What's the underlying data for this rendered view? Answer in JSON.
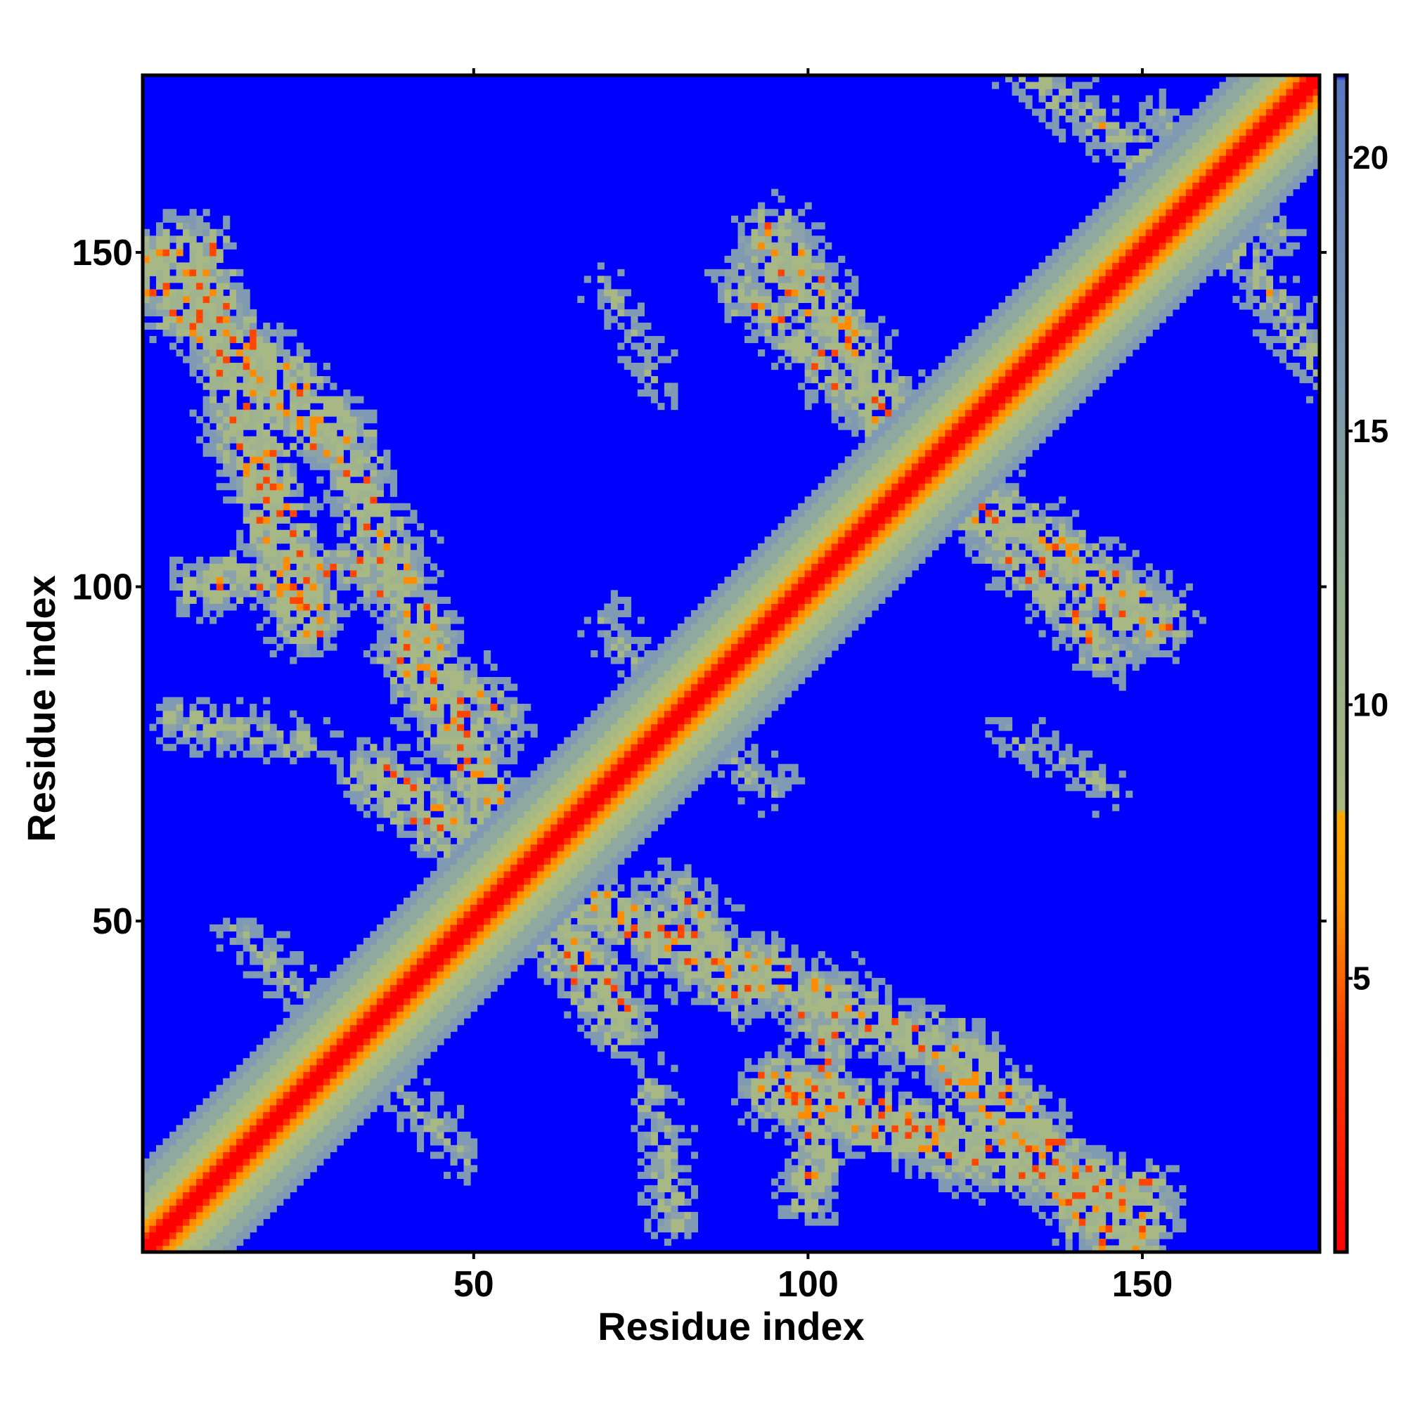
{
  "chart_data": {
    "type": "heatmap",
    "title": "",
    "xlabel": "Residue index",
    "ylabel": "Residue index",
    "n_residues": 176,
    "xlim": [
      0.5,
      176.5
    ],
    "ylim": [
      0.5,
      176.5
    ],
    "x_ticks": [
      50,
      100,
      150
    ],
    "y_ticks": [
      50,
      100,
      150
    ],
    "x_tick_labels": [
      "50",
      "100",
      "150"
    ],
    "y_tick_labels": [
      "50",
      "100",
      "150"
    ],
    "grid": false,
    "legend": "colorbar-right",
    "colorbar": {
      "range": [
        0,
        21.5
      ],
      "ticks": [
        5,
        10,
        15,
        20
      ],
      "tick_labels": [
        "5",
        "10",
        "15",
        "20"
      ],
      "stops": [
        {
          "value": 0,
          "color": "#ff0000"
        },
        {
          "value": 4,
          "color": "#ff4000"
        },
        {
          "value": 6.5,
          "color": "#ff9900"
        },
        {
          "value": 8,
          "color": "#ffaa00"
        },
        {
          "value": 8.1,
          "color": "#a8b880"
        },
        {
          "value": 12,
          "color": "#92ad8c"
        },
        {
          "value": 16,
          "color": "#7896b0"
        },
        {
          "value": 21.4,
          "color": "#5a78c0"
        },
        {
          "value": 21.5,
          "color": "#0000ff"
        }
      ]
    },
    "colors": {
      "close": "#ff0000",
      "near": "#ff8c00",
      "medium": "#a7b885",
      "far": "#7f9ab2",
      "background": "#0000ff"
    },
    "contact_segments": [
      {
        "a": [
          1,
          148
        ],
        "b": [
          30,
          122
        ],
        "strength": 1.0
      },
      {
        "a": [
          30,
          122
        ],
        "b": [
          52,
          70
        ],
        "strength": 0.85
      },
      {
        "a": [
          8,
          100
        ],
        "b": [
          40,
          104
        ],
        "strength": 0.7
      },
      {
        "a": [
          5,
          80
        ],
        "b": [
          25,
          77
        ],
        "strength": 0.55
      },
      {
        "a": [
          35,
          72
        ],
        "b": [
          65,
          52
        ],
        "strength": 0.85
      },
      {
        "a": [
          55,
          60
        ],
        "b": [
          90,
          40
        ],
        "strength": 0.8
      },
      {
        "a": [
          95,
          25
        ],
        "b": [
          150,
          8
        ],
        "strength": 0.95
      },
      {
        "a": [
          80,
          55
        ],
        "b": [
          100,
          35
        ],
        "strength": 0.6
      },
      {
        "a": [
          95,
          152
        ],
        "b": [
          118,
          118
        ],
        "strength": 0.9
      },
      {
        "a": [
          118,
          118
        ],
        "b": [
          145,
          90
        ],
        "strength": 0.7
      },
      {
        "a": [
          70,
          95
        ],
        "b": [
          78,
          82
        ],
        "strength": 0.5
      },
      {
        "a": [
          128,
          180
        ],
        "b": [
          160,
          158
        ],
        "strength": 0.6
      },
      {
        "a": [
          160,
          158
        ],
        "b": [
          170,
          152
        ],
        "strength": 0.5
      },
      {
        "a": [
          130,
          78
        ],
        "b": [
          145,
          70
        ],
        "strength": 0.45
      },
      {
        "a": [
          25,
          40
        ],
        "b": [
          48,
          15
        ],
        "strength": 0.5
      }
    ]
  }
}
